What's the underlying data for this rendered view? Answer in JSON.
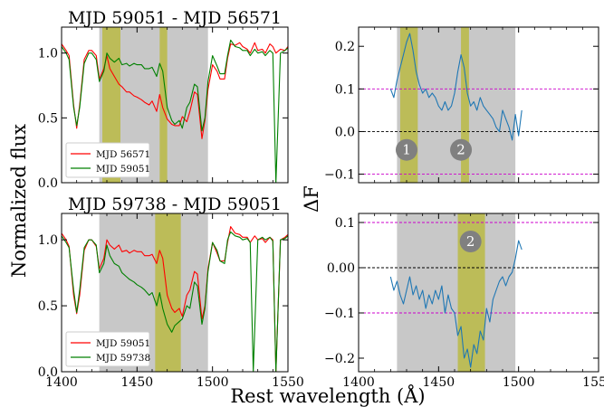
{
  "figure": {
    "ylabel_left": "Normalized flux",
    "ylabel_right": "ΔF",
    "xlabel": "Rest wavelength (Å)"
  },
  "colors": {
    "grey_band": "#c8c8c8",
    "olive_band": "#bcbc58",
    "red": "#ff0000",
    "green": "#008000",
    "blue": "#1f77b4",
    "magenta": "#cc00cc",
    "marker_fill": "#808080"
  },
  "chart_data": [
    {
      "id": "top-left",
      "type": "line",
      "title": "MJD 59051 - MJD 56571",
      "xlim": [
        1400,
        1550
      ],
      "ylim": [
        0,
        1.2
      ],
      "yticks": [
        0.0,
        0.5,
        1.0
      ],
      "xticks": [
        1400,
        1450,
        1500,
        1550
      ],
      "xticklabels_visible": false,
      "bands_grey": [
        [
          1425,
          1497
        ]
      ],
      "bands_olive": [
        [
          1427,
          1439
        ],
        [
          1465,
          1470
        ]
      ],
      "legend": "lower-left",
      "series": [
        {
          "name": "MJD 56571",
          "color": "#ff0000",
          "x": [
            1400,
            1403,
            1405,
            1408,
            1410,
            1412,
            1415,
            1418,
            1420,
            1423,
            1425,
            1428,
            1430,
            1432,
            1435,
            1438,
            1440,
            1443,
            1445,
            1448,
            1450,
            1453,
            1455,
            1458,
            1460,
            1463,
            1465,
            1467,
            1470,
            1473,
            1475,
            1478,
            1480,
            1483,
            1485,
            1488,
            1490,
            1493,
            1495,
            1497,
            1500,
            1503,
            1505,
            1508,
            1510,
            1512,
            1515,
            1518,
            1520,
            1523,
            1525,
            1528,
            1530,
            1533,
            1535,
            1538,
            1540,
            1542,
            1545,
            1548,
            1550
          ],
          "y": [
            1.07,
            1.02,
            0.98,
            0.6,
            0.42,
            0.6,
            0.95,
            1.02,
            1.02,
            0.98,
            0.8,
            0.88,
            0.98,
            0.88,
            0.82,
            0.76,
            0.74,
            0.7,
            0.7,
            0.67,
            0.66,
            0.64,
            0.62,
            0.6,
            0.63,
            0.55,
            0.68,
            0.58,
            0.49,
            0.45,
            0.44,
            0.44,
            0.51,
            0.47,
            0.55,
            0.7,
            0.68,
            0.34,
            0.48,
            0.72,
            0.91,
            0.86,
            0.8,
            0.8,
            0.96,
            1.07,
            1.06,
            1.08,
            1.05,
            1.03,
            1.0,
            1.08,
            1.02,
            1.03,
            1.0,
            1.07,
            1.05,
            1.0,
            1.03,
            1.02,
            1.05
          ]
        },
        {
          "name": "MJD 59051",
          "color": "#008000",
          "x": [
            1400,
            1403,
            1405,
            1408,
            1410,
            1412,
            1415,
            1418,
            1420,
            1423,
            1425,
            1428,
            1430,
            1432,
            1435,
            1438,
            1440,
            1443,
            1445,
            1448,
            1450,
            1453,
            1455,
            1458,
            1460,
            1463,
            1465,
            1467,
            1470,
            1473,
            1475,
            1478,
            1480,
            1483,
            1485,
            1488,
            1490,
            1493,
            1495,
            1497,
            1500,
            1503,
            1505,
            1508,
            1510,
            1512,
            1515,
            1518,
            1520,
            1523,
            1525,
            1528,
            1530,
            1533,
            1535,
            1538,
            1540,
            1542,
            1545,
            1548,
            1550
          ],
          "y": [
            1.05,
            1.0,
            0.95,
            0.58,
            0.44,
            0.58,
            0.92,
            1.0,
            1.0,
            0.95,
            0.78,
            0.86,
            1.0,
            0.96,
            0.93,
            0.96,
            0.91,
            0.92,
            0.9,
            0.92,
            0.91,
            0.91,
            0.88,
            0.88,
            0.89,
            0.82,
            0.92,
            0.86,
            0.58,
            0.48,
            0.45,
            0.48,
            0.42,
            0.58,
            0.62,
            0.76,
            0.74,
            0.4,
            0.5,
            0.78,
            0.98,
            0.9,
            0.84,
            0.84,
            0.98,
            1.1,
            1.05,
            1.04,
            1.02,
            1.02,
            0.98,
            1.03,
            1.0,
            1.01,
            0.98,
            1.02,
            1.0,
            0.0,
            1.0,
            1.02,
            1.04
          ]
        }
      ]
    },
    {
      "id": "bottom-left",
      "type": "line",
      "title": "MJD 59738 - MJD 59051",
      "xlim": [
        1400,
        1550
      ],
      "ylim": [
        0,
        1.2
      ],
      "yticks": [
        0.0,
        0.5,
        1.0
      ],
      "xticks": [
        1400,
        1450,
        1500,
        1550
      ],
      "bands_grey": [
        [
          1425,
          1497
        ]
      ],
      "bands_olive": [
        [
          1462,
          1479
        ]
      ],
      "legend": "lower-left",
      "series": [
        {
          "name": "MJD 59051",
          "color": "#ff0000",
          "x": [
            1400,
            1403,
            1405,
            1408,
            1410,
            1412,
            1415,
            1418,
            1420,
            1423,
            1425,
            1428,
            1430,
            1432,
            1435,
            1438,
            1440,
            1443,
            1445,
            1448,
            1450,
            1453,
            1455,
            1458,
            1460,
            1463,
            1465,
            1467,
            1470,
            1473,
            1475,
            1478,
            1480,
            1483,
            1485,
            1488,
            1490,
            1493,
            1495,
            1497,
            1500,
            1503,
            1505,
            1508,
            1510,
            1512,
            1515,
            1518,
            1520,
            1523,
            1525,
            1528,
            1530,
            1533,
            1535,
            1538,
            1540,
            1542,
            1545,
            1548,
            1550
          ],
          "y": [
            1.05,
            1.0,
            0.95,
            0.58,
            0.44,
            0.58,
            0.92,
            1.0,
            1.0,
            0.95,
            0.78,
            0.86,
            1.0,
            0.96,
            0.93,
            0.96,
            0.91,
            0.92,
            0.9,
            0.92,
            0.91,
            0.91,
            0.88,
            0.88,
            0.89,
            0.82,
            0.92,
            0.86,
            0.58,
            0.48,
            0.45,
            0.48,
            0.42,
            0.58,
            0.62,
            0.76,
            0.74,
            0.4,
            0.5,
            0.78,
            0.98,
            0.9,
            0.84,
            0.84,
            0.98,
            1.1,
            1.05,
            1.04,
            1.02,
            1.02,
            0.98,
            1.03,
            1.0,
            1.01,
            0.98,
            1.02,
            1.0,
            0.0,
            1.0,
            1.02,
            1.04
          ]
        },
        {
          "name": "MJD 59738",
          "color": "#008000",
          "x": [
            1400,
            1403,
            1405,
            1408,
            1410,
            1412,
            1415,
            1418,
            1420,
            1423,
            1425,
            1428,
            1430,
            1432,
            1435,
            1438,
            1440,
            1443,
            1445,
            1448,
            1450,
            1453,
            1455,
            1458,
            1460,
            1463,
            1465,
            1467,
            1470,
            1473,
            1475,
            1478,
            1480,
            1483,
            1485,
            1488,
            1490,
            1493,
            1495,
            1497,
            1500,
            1503,
            1505,
            1508,
            1510,
            1512,
            1515,
            1518,
            1520,
            1523,
            1525,
            1527,
            1530,
            1533,
            1535,
            1538,
            1540,
            1542,
            1545,
            1548,
            1550
          ],
          "y": [
            1.03,
            0.98,
            0.94,
            0.62,
            0.45,
            0.62,
            0.94,
            1.0,
            1.0,
            0.96,
            0.75,
            0.82,
            0.96,
            0.88,
            0.82,
            0.8,
            0.75,
            0.72,
            0.7,
            0.68,
            0.66,
            0.64,
            0.62,
            0.58,
            0.6,
            0.5,
            0.6,
            0.48,
            0.36,
            0.3,
            0.35,
            0.38,
            0.4,
            0.5,
            0.48,
            0.68,
            0.65,
            0.36,
            0.48,
            0.76,
            0.98,
            0.92,
            0.84,
            0.82,
            1.0,
            1.06,
            1.03,
            1.02,
            1.0,
            1.01,
            0.98,
            0.0,
            1.0,
            1.02,
            1.0,
            1.02,
            0.99,
            0.0,
            1.0,
            1.01,
            1.03
          ]
        }
      ]
    },
    {
      "id": "top-right",
      "type": "line",
      "xlim": [
        1400,
        1550
      ],
      "ylim": [
        -0.12,
        0.245
      ],
      "yticks": [
        -0.1,
        0.0,
        0.1,
        0.2
      ],
      "yticklabels": [
        "−0.1",
        "0.0",
        "0.1",
        "0.2"
      ],
      "xticks": [
        1400,
        1450,
        1500,
        1550
      ],
      "xticklabels_visible": false,
      "bands_grey": [
        [
          1424,
          1498
        ]
      ],
      "bands_olive": [
        [
          1426,
          1437
        ],
        [
          1464,
          1469
        ]
      ],
      "hlines": [
        {
          "y": 0.1,
          "style": "magenta-dashed"
        },
        {
          "y": 0.0,
          "style": "black-dashed"
        },
        {
          "y": -0.1,
          "style": "magenta-dashed"
        }
      ],
      "markers": [
        {
          "x": 1430,
          "y": -0.043,
          "label": "1"
        },
        {
          "x": 1464,
          "y": -0.043,
          "label": "2"
        }
      ],
      "series": [
        {
          "color": "#1f77b4",
          "x": [
            1420,
            1422,
            1424,
            1426,
            1428,
            1430,
            1432,
            1434,
            1436,
            1438,
            1440,
            1442,
            1444,
            1446,
            1448,
            1450,
            1452,
            1454,
            1456,
            1458,
            1460,
            1462,
            1464,
            1466,
            1468,
            1470,
            1472,
            1474,
            1476,
            1478,
            1480,
            1482,
            1484,
            1486,
            1488,
            1490,
            1492,
            1494,
            1496,
            1498,
            1500,
            1502
          ],
          "y": [
            0.1,
            0.08,
            0.12,
            0.15,
            0.18,
            0.21,
            0.23,
            0.19,
            0.14,
            0.11,
            0.09,
            0.1,
            0.08,
            0.09,
            0.08,
            0.06,
            0.05,
            0.07,
            0.05,
            0.06,
            0.09,
            0.14,
            0.18,
            0.15,
            0.09,
            0.06,
            0.07,
            0.05,
            0.08,
            0.06,
            0.05,
            0.04,
            0.03,
            0.01,
            0.0,
            0.05,
            0.03,
            0.01,
            -0.02,
            0.04,
            -0.01,
            0.05
          ]
        }
      ]
    },
    {
      "id": "bottom-right",
      "type": "line",
      "xlim": [
        1400,
        1550
      ],
      "ylim": [
        -0.23,
        0.12
      ],
      "yticks": [
        -0.2,
        -0.1,
        0.0,
        0.1
      ],
      "yticklabels": [
        "−0.2",
        "−0.1",
        "0.00",
        "0.1"
      ],
      "xticks": [
        1400,
        1450,
        1500,
        1550
      ],
      "bands_grey": [
        [
          1424,
          1498
        ]
      ],
      "bands_olive": [
        [
          1462,
          1479
        ]
      ],
      "hlines": [
        {
          "y": 0.1,
          "style": "magenta-dashed"
        },
        {
          "y": 0.0,
          "style": "black-dashed"
        },
        {
          "y": -0.1,
          "style": "magenta-dashed"
        }
      ],
      "markers": [
        {
          "x": 1470,
          "y": 0.058,
          "label": "2"
        }
      ],
      "series": [
        {
          "color": "#1f77b4",
          "x": [
            1420,
            1422,
            1424,
            1426,
            1428,
            1430,
            1432,
            1434,
            1436,
            1438,
            1440,
            1442,
            1444,
            1446,
            1448,
            1450,
            1452,
            1454,
            1456,
            1458,
            1460,
            1462,
            1464,
            1466,
            1468,
            1470,
            1472,
            1474,
            1476,
            1478,
            1480,
            1482,
            1484,
            1486,
            1488,
            1490,
            1492,
            1494,
            1496,
            1498,
            1500,
            1502
          ],
          "y": [
            -0.02,
            -0.05,
            -0.03,
            -0.06,
            -0.08,
            -0.05,
            -0.02,
            -0.06,
            -0.04,
            -0.07,
            -0.05,
            -0.09,
            -0.06,
            -0.08,
            -0.05,
            -0.07,
            -0.04,
            -0.1,
            -0.06,
            -0.09,
            -0.1,
            -0.15,
            -0.13,
            -0.2,
            -0.18,
            -0.22,
            -0.17,
            -0.19,
            -0.14,
            -0.16,
            -0.09,
            -0.12,
            -0.07,
            -0.05,
            -0.03,
            -0.02,
            -0.04,
            -0.02,
            -0.01,
            0.02,
            0.06,
            0.04
          ]
        }
      ]
    }
  ]
}
